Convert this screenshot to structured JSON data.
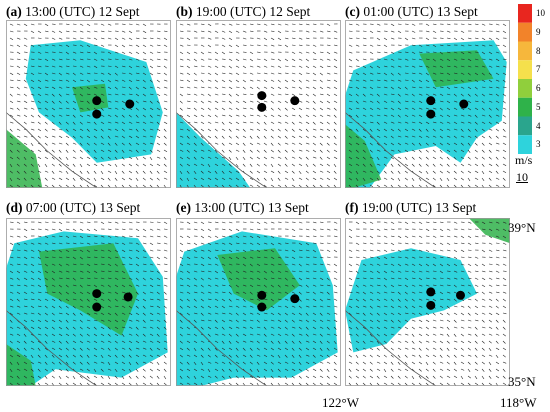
{
  "panels": [
    {
      "letter": "(a)",
      "title": "13:00 (UTC) 12 Sept"
    },
    {
      "letter": "(b)",
      "title": "19:00 (UTC) 12 Sept"
    },
    {
      "letter": "(c)",
      "title": "01:00 (UTC) 13 Sept"
    },
    {
      "letter": "(d)",
      "title": "07:00 (UTC) 13 Sept"
    },
    {
      "letter": "(e)",
      "title": "13:00 (UTC) 13 Sept"
    },
    {
      "letter": "(f)",
      "title": "19:00 (UTC) 13 Sept"
    }
  ],
  "colorbar": {
    "labels": [
      "10",
      "9",
      "8",
      "7",
      "6",
      "5",
      "4",
      "3"
    ],
    "colors": [
      "#e8261f",
      "#f2832a",
      "#f6b73c",
      "#f5e04c",
      "#90cf3c",
      "#2fb24a",
      "#2aa58d",
      "#2ed3dc"
    ]
  },
  "units": {
    "text": "m/s",
    "ref_value": "10"
  },
  "coords": {
    "lat_top": "39°N",
    "lat_bottom": "35°N",
    "lon_left": "122°W",
    "lon_right": "118°W"
  }
}
